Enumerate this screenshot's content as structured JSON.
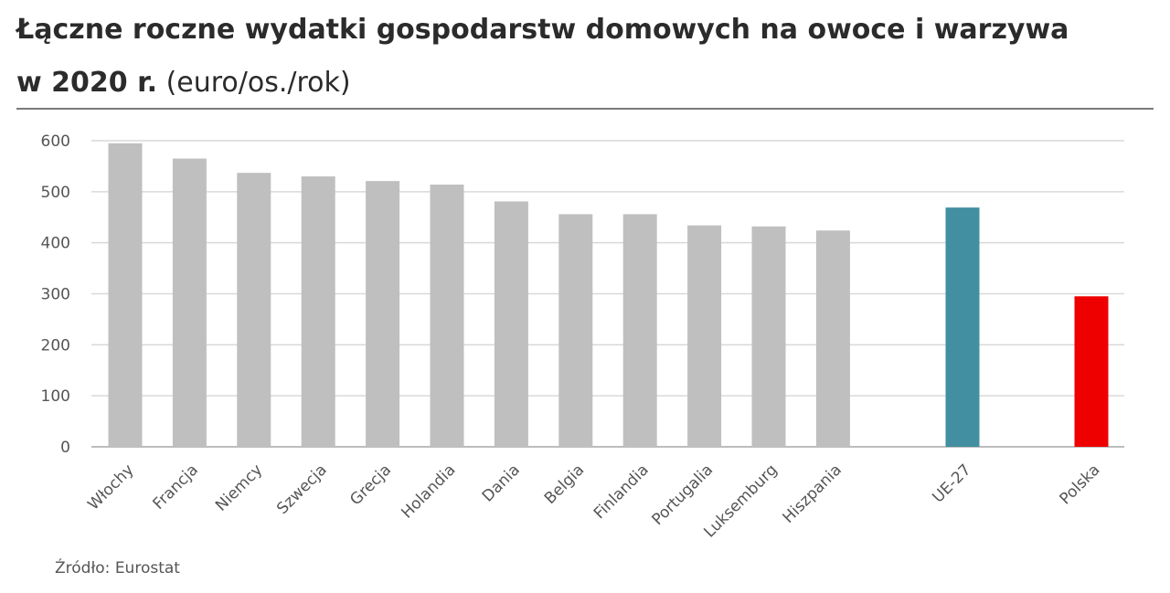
{
  "title": {
    "line1": "Łączne roczne wydatki gospodarstw domowych na owoce i warzywa",
    "line2_bold": "w  2020 r.",
    "line2_unit": "(euro/os./rok)"
  },
  "source": "Źródło: Eurostat",
  "chart_data": {
    "type": "bar",
    "title": "Łączne roczne wydatki gospodarstw domowych na owoce i warzywa w 2020 r. (euro/os./rok)",
    "categories": [
      "Włochy",
      "Francja",
      "Niemcy",
      "Szwecja",
      "Grecja",
      "Holandia",
      "Dania",
      "Belgia",
      "Finlandia",
      "Portugalia",
      "Luksemburg",
      "Hiszpania",
      "UE-27",
      "Polska"
    ],
    "values": [
      595,
      565,
      537,
      530,
      521,
      514,
      481,
      456,
      456,
      434,
      432,
      424,
      469,
      295
    ],
    "bar_colors": [
      "#bfbfbf",
      "#bfbfbf",
      "#bfbfbf",
      "#bfbfbf",
      "#bfbfbf",
      "#bfbfbf",
      "#bfbfbf",
      "#bfbfbf",
      "#bfbfbf",
      "#bfbfbf",
      "#bfbfbf",
      "#bfbfbf",
      "#418fa0",
      "#ee0000"
    ],
    "ylim": [
      0,
      600
    ],
    "yticks": [
      0,
      100,
      200,
      300,
      400,
      500,
      600
    ],
    "grid": true,
    "xlabel": "",
    "ylabel": ""
  }
}
